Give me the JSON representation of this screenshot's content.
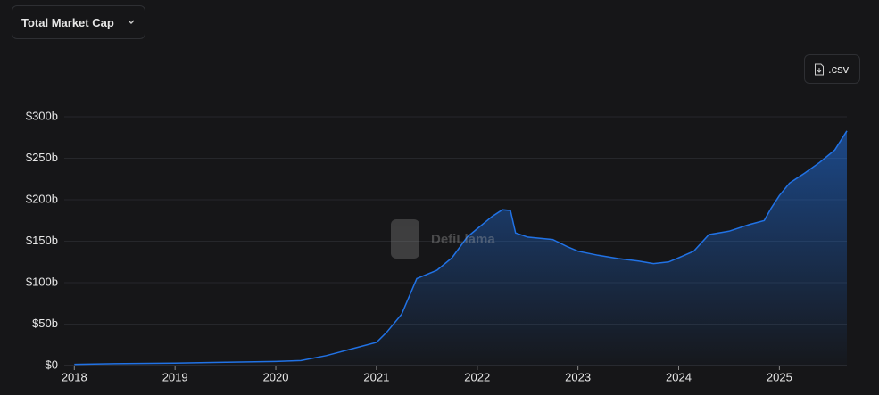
{
  "controls": {
    "dropdown": "Total Market Cap",
    "download": ".csv"
  },
  "watermark": "DefiLlama",
  "chart_data": {
    "type": "area",
    "x": [
      2018.0,
      2018.5,
      2019.0,
      2019.5,
      2020.0,
      2020.25,
      2020.5,
      2020.75,
      2021.0,
      2021.1,
      2021.25,
      2021.4,
      2021.6,
      2021.75,
      2021.9,
      2022.0,
      2022.15,
      2022.25,
      2022.33,
      2022.38,
      2022.5,
      2022.75,
      2022.9,
      2023.0,
      2023.2,
      2023.4,
      2023.6,
      2023.75,
      2023.9,
      2024.0,
      2024.15,
      2024.3,
      2024.5,
      2024.7,
      2024.85,
      2024.92,
      2025.0,
      2025.1,
      2025.25,
      2025.4,
      2025.55,
      2025.67
    ],
    "series": [
      {
        "color": "#2172e5",
        "values": [
          1.5,
          2.5,
          3,
          4,
          5,
          6,
          12,
          20,
          28,
          40,
          62,
          105,
          115,
          130,
          155,
          165,
          180,
          188,
          187,
          160,
          155,
          152,
          143,
          138,
          133,
          129,
          126,
          123,
          125,
          130,
          138,
          158,
          162,
          170,
          175,
          190,
          205,
          220,
          232,
          245,
          260,
          283
        ]
      }
    ],
    "xlim": [
      2017.9,
      2025.67
    ],
    "xticks": [
      2018,
      2019,
      2020,
      2021,
      2022,
      2023,
      2024,
      2025
    ],
    "ylim": [
      0,
      300
    ],
    "yticks": [
      {
        "value": 0,
        "label": "$0"
      },
      {
        "value": 50,
        "label": "$50b"
      },
      {
        "value": 100,
        "label": "$100b"
      },
      {
        "value": 150,
        "label": "$150b"
      },
      {
        "value": 200,
        "label": "$200b"
      },
      {
        "value": 250,
        "label": "$250b"
      },
      {
        "value": 300,
        "label": "$300b"
      }
    ],
    "grid": true
  }
}
